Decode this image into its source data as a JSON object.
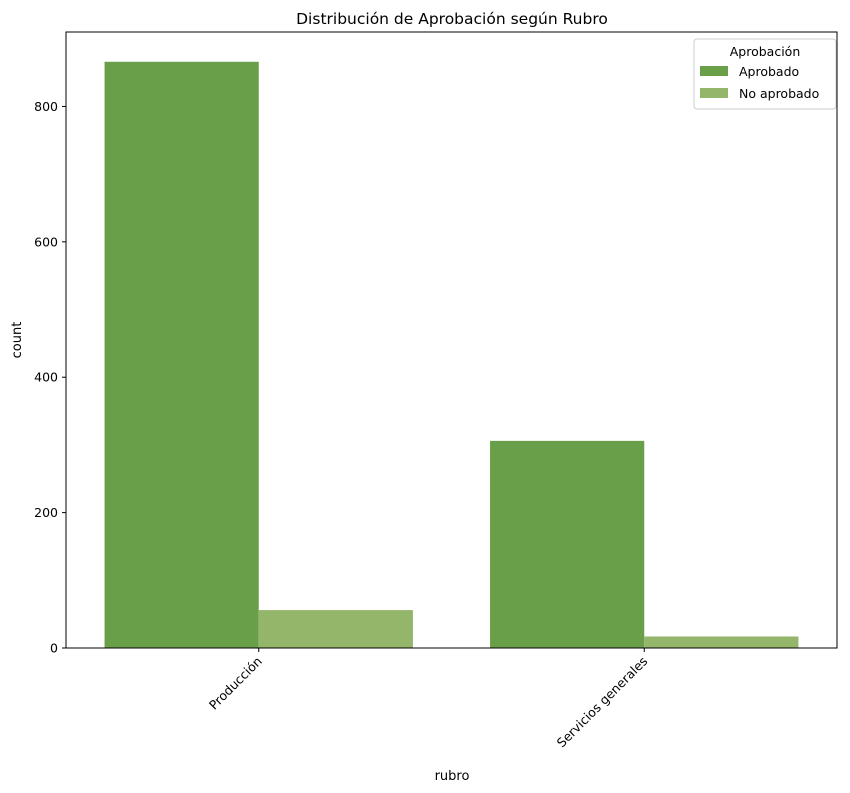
{
  "chart_data": {
    "type": "bar",
    "title": "Distribución de Aprobación según Rubro",
    "xlabel": "rubro",
    "ylabel": "count",
    "categories": [
      "Producción",
      "Servicios generales"
    ],
    "series": [
      {
        "name": "Aprobado",
        "values": [
          866,
          306
        ],
        "color": "#6a9f4a"
      },
      {
        "name": "No aprobado",
        "values": [
          56,
          17
        ],
        "color": "#93b66a"
      }
    ],
    "ylim": [
      0,
      910
    ],
    "yticks": [
      "0",
      "200",
      "400",
      "600",
      "800"
    ],
    "legend": {
      "title": "Aprobación",
      "position": "top-right"
    },
    "grid": false
  }
}
